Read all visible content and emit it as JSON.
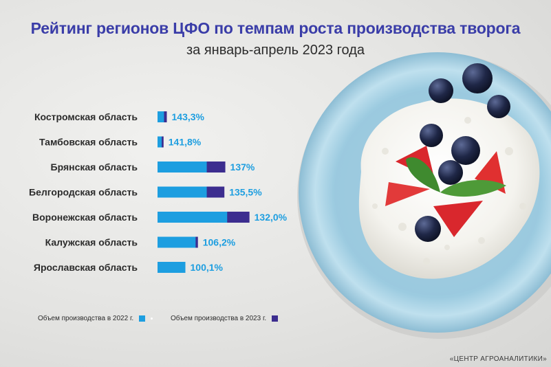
{
  "title": "Рейтинг регионов ЦФО по темпам роста производства творога",
  "subtitle": "за январь-апрель 2023 года",
  "legend": {
    "series_2022": "Объем производства в 2022 г.",
    "series_2023": "Объем производства в 2023 г."
  },
  "source": "«ЦЕНТР АГРОАНАЛИТИКИ»",
  "colors": {
    "series_2022": "#1d9ee0",
    "series_2023": "#3c2d8f",
    "value_label": "#1d9ee0",
    "title": "#3a3da8"
  },
  "chart_data": {
    "type": "bar",
    "orientation": "horizontal",
    "title": "Рейтинг регионов ЦФО по темпам роста производства творога",
    "subtitle": "за январь-апрель 2023 года",
    "categories": [
      "Костромская область",
      "Тамбовская область",
      "Брянская область",
      "Белгородская область",
      "Воронежская область",
      "Калужская область",
      "Ярославская область"
    ],
    "series": [
      {
        "name": "Объем производства в 2022 г.",
        "values": [
          0.7,
          0.45,
          5.3,
          5.3,
          7.5,
          4.1,
          3.0
        ]
      },
      {
        "name": "Объем производства в 2023 г.",
        "values": [
          1.0,
          0.65,
          7.3,
          7.2,
          9.9,
          4.35,
          3.0
        ]
      }
    ],
    "value_labels": [
      "143,3%",
      "141,8%",
      "137%",
      "135,5%",
      "132,0%",
      "106,2%",
      "100,1%"
    ],
    "legend_position": "bottom-left",
    "grid": false,
    "xlabel": "",
    "ylabel": ""
  }
}
